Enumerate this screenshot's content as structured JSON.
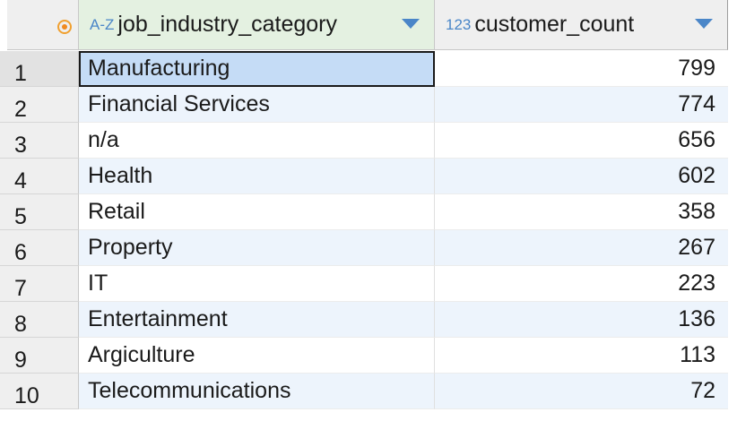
{
  "grid": {
    "columns": [
      {
        "type_badge": "A-Z",
        "name": "job_industry_category"
      },
      {
        "type_badge": "123",
        "name": "customer_count"
      }
    ],
    "corner_icon": "record-icon",
    "sort_icon": "sort-down-icon",
    "rows": [
      {
        "num": "1",
        "category": "Manufacturing",
        "count": "799"
      },
      {
        "num": "2",
        "category": "Financial Services",
        "count": "774"
      },
      {
        "num": "3",
        "category": "n/a",
        "count": "656"
      },
      {
        "num": "4",
        "category": "Health",
        "count": "602"
      },
      {
        "num": "5",
        "category": "Retail",
        "count": "358"
      },
      {
        "num": "6",
        "category": "Property",
        "count": "267"
      },
      {
        "num": "7",
        "category": "IT",
        "count": "223"
      },
      {
        "num": "8",
        "category": "Entertainment",
        "count": "136"
      },
      {
        "num": "9",
        "category": "Argiculture",
        "count": "113"
      },
      {
        "num": "10",
        "category": "Telecommunications",
        "count": "72"
      }
    ]
  },
  "colors": {
    "accent": "#4a86c8",
    "selection": "#c5dcf6",
    "row_alt": "#edf4fc",
    "header_active": "#e4f1e1",
    "corner_icon": "#f08a20"
  }
}
